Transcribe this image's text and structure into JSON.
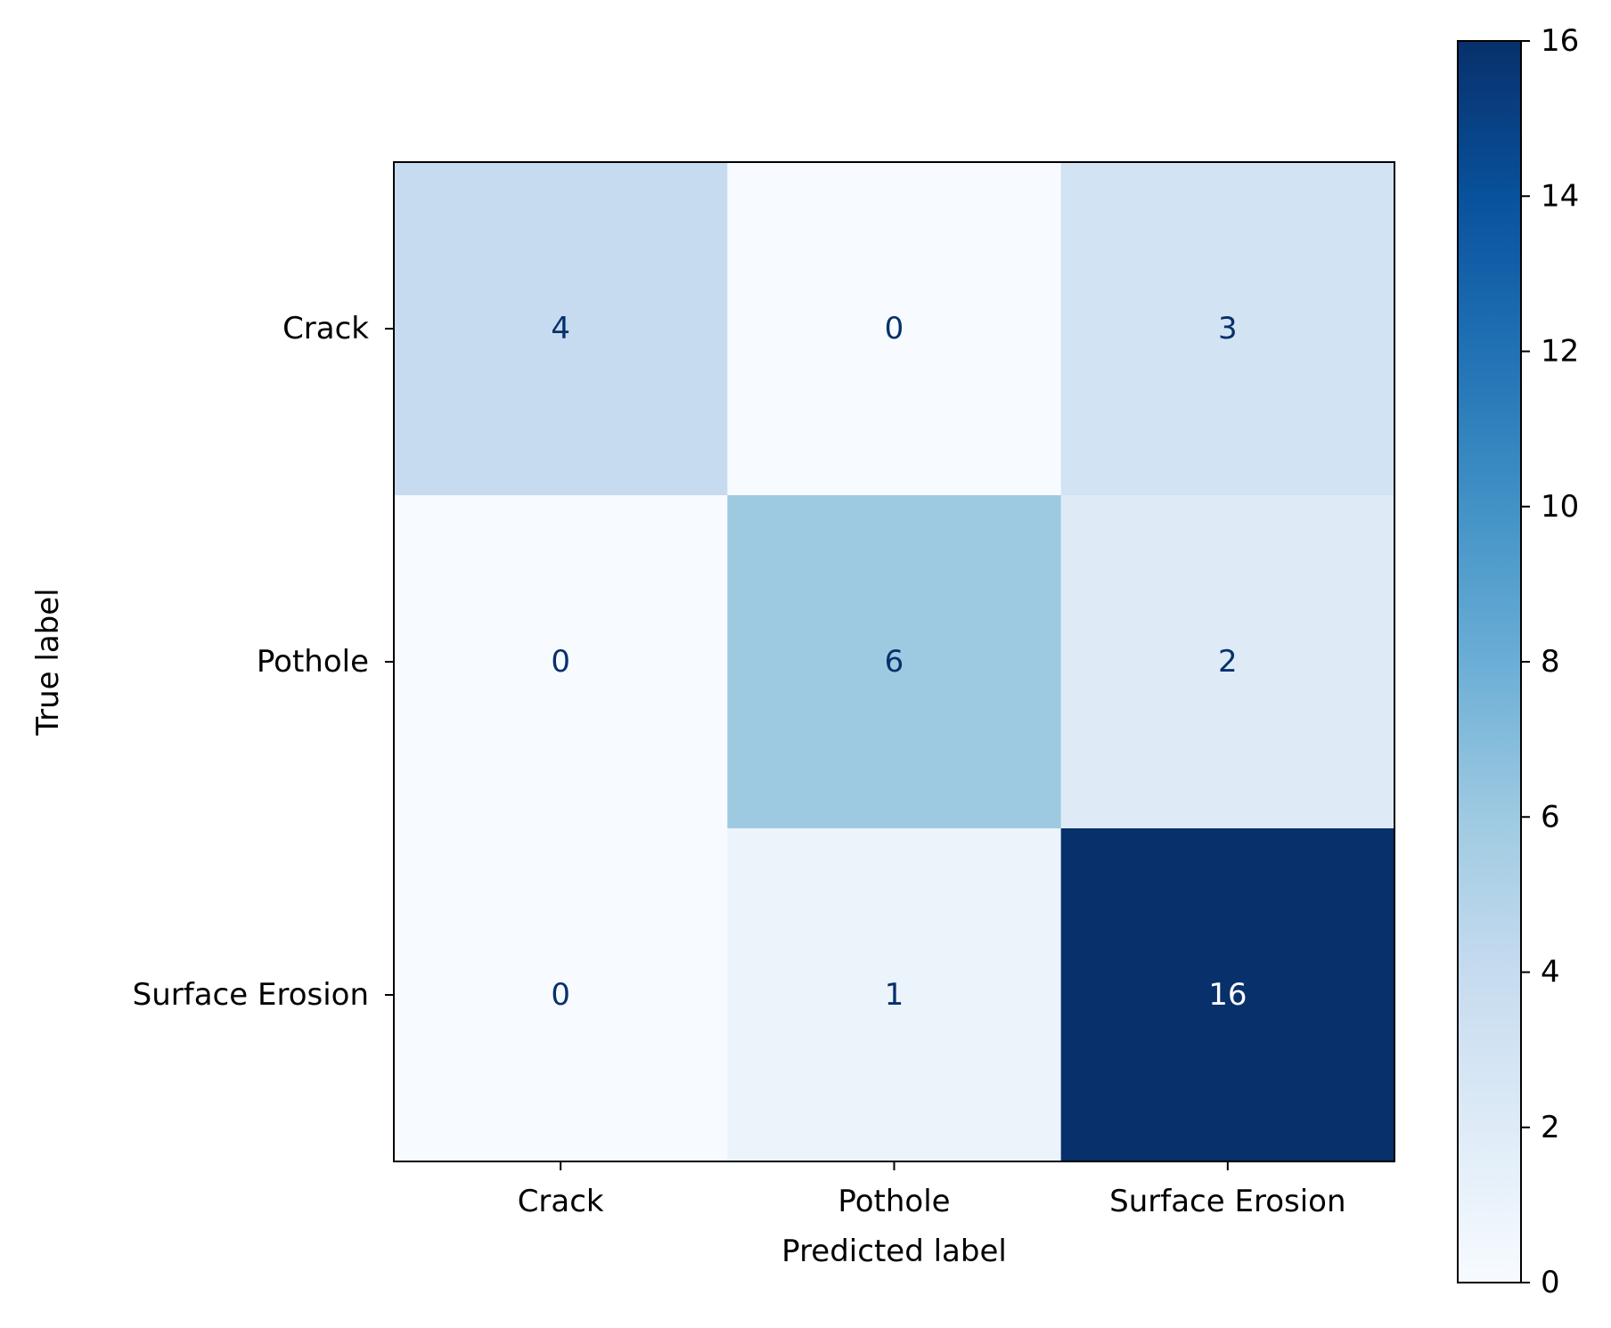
{
  "chart_data": {
    "type": "heatmap",
    "title": "",
    "xlabel": "Predicted label",
    "ylabel": "True label",
    "x_categories": [
      "Crack",
      "Pothole",
      "Surface Erosion"
    ],
    "y_categories": [
      "Crack",
      "Pothole",
      "Surface Erosion"
    ],
    "values": [
      [
        4,
        0,
        3
      ],
      [
        0,
        6,
        2
      ],
      [
        0,
        1,
        16
      ]
    ],
    "colormap": "Blues",
    "color_range": [
      0,
      16
    ],
    "colorbar_ticks": [
      0,
      2,
      4,
      6,
      8,
      10,
      12,
      14,
      16
    ],
    "grid": false,
    "colorbar_placement": "right"
  }
}
